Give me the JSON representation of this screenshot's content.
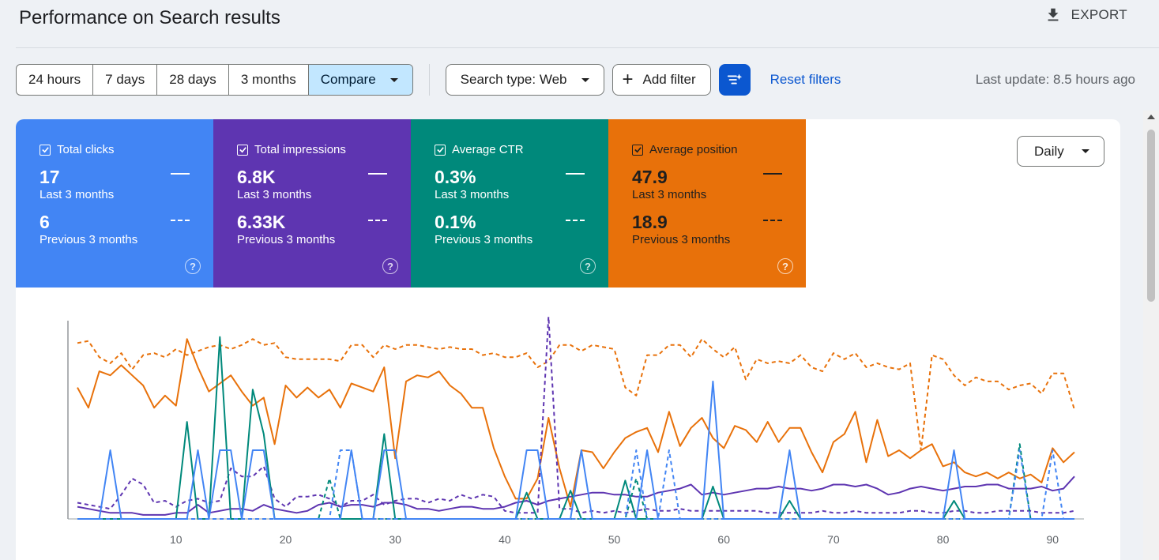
{
  "header": {
    "title": "Performance on Search results",
    "export_label": "EXPORT"
  },
  "toolbar": {
    "ranges": [
      "24 hours",
      "7 days",
      "28 days",
      "3 months"
    ],
    "compare_label": "Compare",
    "search_type_label": "Search type: Web",
    "add_filter_label": "Add filter",
    "reset_filters_label": "Reset filters",
    "last_update": "Last update: 8.5 hours ago"
  },
  "metrics": [
    {
      "label": "Total clicks",
      "current": "17",
      "current_period": "Last 3 months",
      "previous": "6",
      "previous_period": "Previous 3 months",
      "color": "#4285f4"
    },
    {
      "label": "Total impressions",
      "current": "6.8K",
      "current_period": "Last 3 months",
      "previous": "6.33K",
      "previous_period": "Previous 3 months",
      "color": "#5e35b1"
    },
    {
      "label": "Average CTR",
      "current": "0.3%",
      "current_period": "Last 3 months",
      "previous": "0.1%",
      "previous_period": "Previous 3 months",
      "color": "#00897b"
    },
    {
      "label": "Average position",
      "current": "47.9",
      "current_period": "Last 3 months",
      "previous": "18.9",
      "previous_period": "Previous 3 months",
      "color": "#e8710a"
    }
  ],
  "granularity": {
    "selected": "Daily"
  },
  "chart_data": {
    "type": "line",
    "x_ticks": [
      10,
      20,
      30,
      40,
      50,
      60,
      70,
      80,
      90
    ],
    "xlim": [
      1,
      92
    ],
    "grid": false,
    "colors": {
      "clicks": "#4285f4",
      "impressions": "#5e35b1",
      "ctr": "#00897b",
      "position": "#e8710a"
    },
    "series": [
      {
        "name": "Average position",
        "style": "solid",
        "color": "#e8710a",
        "normalized": true,
        "values": [
          0.65,
          0.55,
          0.73,
          0.71,
          0.76,
          0.71,
          0.66,
          0.55,
          0.61,
          0.56,
          0.89,
          0.75,
          0.63,
          0.67,
          0.71,
          0.63,
          0.56,
          0.6,
          0.37,
          0.66,
          0.6,
          0.65,
          0.6,
          0.64,
          0.55,
          0.67,
          0.65,
          0.63,
          0.75,
          0.3,
          0.68,
          0.71,
          0.7,
          0.73,
          0.66,
          0.62,
          0.55,
          0.55,
          0.35,
          0.21,
          0.1,
          0.1,
          0.2,
          0.5,
          0.25,
          0.06,
          0.34,
          0.33,
          0.25,
          0.33,
          0.4,
          0.43,
          0.45,
          0.33,
          0.53,
          0.36,
          0.45,
          0.5,
          0.4,
          0.35,
          0.46,
          0.44,
          0.38,
          0.48,
          0.38,
          0.45,
          0.45,
          0.33,
          0.23,
          0.38,
          0.42,
          0.53,
          0.28,
          0.49,
          0.31,
          0.34,
          0.3,
          0.34,
          0.37,
          0.26,
          0.28,
          0.23,
          0.21,
          0.23,
          0.2,
          0.23,
          0.2,
          0.22,
          0.18,
          0.35,
          0.28,
          0.33
        ]
      },
      {
        "name": "Average position (previous)",
        "style": "dashed",
        "color": "#e8710a",
        "normalized": true,
        "values": [
          0.87,
          0.88,
          0.8,
          0.77,
          0.82,
          0.74,
          0.81,
          0.82,
          0.8,
          0.84,
          0.81,
          0.83,
          0.85,
          0.86,
          0.84,
          0.86,
          0.89,
          0.86,
          0.87,
          0.8,
          0.79,
          0.79,
          0.79,
          0.79,
          0.78,
          0.86,
          0.86,
          0.8,
          0.86,
          0.84,
          0.86,
          0.86,
          0.85,
          0.84,
          0.85,
          0.84,
          0.84,
          0.81,
          0.82,
          0.8,
          0.8,
          0.82,
          0.75,
          0.78,
          0.86,
          0.86,
          0.83,
          0.86,
          0.85,
          0.84,
          0.65,
          0.61,
          0.81,
          0.81,
          0.86,
          0.86,
          0.8,
          0.89,
          0.84,
          0.8,
          0.85,
          0.69,
          0.79,
          0.77,
          0.78,
          0.77,
          0.81,
          0.75,
          0.73,
          0.82,
          0.79,
          0.82,
          0.75,
          0.77,
          0.75,
          0.74,
          0.77,
          0.34,
          0.81,
          0.79,
          0.71,
          0.66,
          0.7,
          0.68,
          0.68,
          0.64,
          0.66,
          0.67,
          0.62,
          0.72,
          0.72,
          0.54
        ]
      },
      {
        "name": "Total impressions",
        "style": "solid",
        "color": "#5e35b1",
        "normalized": true,
        "values": [
          0.06,
          0.05,
          0.04,
          0.03,
          0.03,
          0.03,
          0.02,
          0.02,
          0.02,
          0.03,
          0.03,
          0.07,
          0.03,
          0.04,
          0.05,
          0.05,
          0.04,
          0.07,
          0.05,
          0.04,
          0.03,
          0.04,
          0.07,
          0.08,
          0.06,
          0.07,
          0.07,
          0.06,
          0.08,
          0.08,
          0.07,
          0.05,
          0.05,
          0.04,
          0.05,
          0.06,
          0.06,
          0.05,
          0.05,
          0.06,
          0.08,
          0.09,
          0.07,
          0.09,
          0.1,
          0.11,
          0.12,
          0.13,
          0.13,
          0.12,
          0.12,
          0.11,
          0.11,
          0.13,
          0.14,
          0.15,
          0.17,
          0.12,
          0.13,
          0.12,
          0.13,
          0.14,
          0.15,
          0.15,
          0.16,
          0.15,
          0.15,
          0.14,
          0.15,
          0.17,
          0.17,
          0.16,
          0.17,
          0.15,
          0.12,
          0.13,
          0.15,
          0.16,
          0.15,
          0.14,
          0.15,
          0.16,
          0.16,
          0.17,
          0.17,
          0.15,
          0.15,
          0.15,
          0.16,
          0.14,
          0.15,
          0.21
        ]
      },
      {
        "name": "Total impressions (previous)",
        "style": "dashed",
        "color": "#5e35b1",
        "normalized": true,
        "values": [
          0.08,
          0.07,
          0.06,
          0.05,
          0.12,
          0.2,
          0.17,
          0.08,
          0.09,
          0.06,
          0.09,
          0.1,
          0.08,
          0.09,
          0.25,
          0.21,
          0.21,
          0.26,
          0.1,
          0.06,
          0.11,
          0.11,
          0.12,
          0.1,
          0.06,
          0.09,
          0.09,
          0.12,
          0.07,
          0.09,
          0.1,
          0.1,
          0.08,
          0.1,
          0.09,
          0.12,
          0.1,
          0.12,
          0.11,
          0.04,
          0.03,
          0.03,
          0.03,
          1.0,
          0.05,
          0.05,
          0.03,
          0.04,
          0.03,
          0.04,
          0.03,
          0.04,
          0.05,
          0.04,
          0.04,
          0.05,
          0.04,
          0.04,
          0.04,
          0.04,
          0.04,
          0.04,
          0.04,
          0.03,
          0.03,
          0.03,
          0.03,
          0.03,
          0.04,
          0.03,
          0.03,
          0.04,
          0.03,
          0.03,
          0.03,
          0.03,
          0.04,
          0.04,
          0.03,
          0.03,
          0.04,
          0.04,
          0.03,
          0.03,
          0.04,
          0.04,
          0.04,
          0.04,
          0.03,
          0.03,
          0.03,
          0.04
        ]
      },
      {
        "name": "Average CTR",
        "style": "solid",
        "color": "#00897b",
        "normalized": true,
        "values": [
          0,
          0,
          0,
          0,
          0,
          0,
          0,
          0,
          0,
          0,
          0.48,
          0,
          0,
          0.9,
          0,
          0,
          0.64,
          0.42,
          0,
          0,
          0,
          0,
          0,
          0,
          0,
          0,
          0,
          0,
          0.42,
          0,
          0,
          0,
          0,
          0,
          0,
          0,
          0,
          0,
          0,
          0,
          0,
          0.13,
          0,
          0,
          0,
          0.14,
          0,
          0,
          0,
          0,
          0.19,
          0,
          0,
          0,
          0,
          0,
          0,
          0,
          0.16,
          0,
          0,
          0,
          0,
          0,
          0,
          0.09,
          0,
          0,
          0,
          0,
          0,
          0,
          0,
          0,
          0,
          0,
          0,
          0,
          0,
          0,
          0.09,
          0,
          0,
          0,
          0,
          0,
          0,
          0,
          0,
          0,
          0,
          0
        ]
      },
      {
        "name": "Average CTR (previous)",
        "style": "dashed",
        "color": "#00897b",
        "normalized": true,
        "values": [
          0,
          0,
          0,
          0,
          0,
          0,
          0,
          0,
          0,
          0,
          0,
          0,
          0,
          0,
          0,
          0,
          0,
          0,
          0,
          0,
          0,
          0,
          0,
          0.2,
          0,
          0,
          0,
          0,
          0,
          0,
          0,
          0,
          0,
          0,
          0,
          0,
          0,
          0,
          0,
          0,
          0,
          0,
          0,
          0,
          0,
          0,
          0,
          0,
          0,
          0,
          0,
          0.2,
          0,
          0,
          0,
          0,
          0,
          0,
          0,
          0,
          0,
          0,
          0,
          0,
          0,
          0,
          0,
          0,
          0,
          0,
          0,
          0,
          0,
          0,
          0,
          0,
          0,
          0,
          0,
          0,
          0,
          0,
          0,
          0,
          0,
          0,
          0.37,
          0,
          0,
          0,
          0,
          0
        ]
      },
      {
        "name": "Total clicks",
        "style": "solid",
        "color": "#4285f4",
        "normalized": true,
        "values": [
          0,
          0,
          0,
          0.34,
          0,
          0,
          0,
          0,
          0,
          0,
          0,
          0.34,
          0,
          0.34,
          0.34,
          0,
          0.34,
          0.34,
          0,
          0,
          0,
          0,
          0,
          0,
          0,
          0.34,
          0,
          0,
          0.34,
          0.34,
          0,
          0,
          0,
          0,
          0,
          0,
          0,
          0,
          0,
          0,
          0,
          0.34,
          0.34,
          0,
          0,
          0,
          0.34,
          0,
          0,
          0,
          0,
          0,
          0.34,
          0,
          0,
          0,
          0,
          0,
          0.68,
          0,
          0,
          0,
          0,
          0,
          0,
          0.34,
          0,
          0,
          0,
          0,
          0,
          0,
          0,
          0,
          0,
          0,
          0,
          0,
          0,
          0,
          0.34,
          0,
          0,
          0,
          0,
          0,
          0,
          0,
          0,
          0,
          0,
          0
        ]
      },
      {
        "name": "Total clicks (previous)",
        "style": "dashed",
        "color": "#4285f4",
        "normalized": true,
        "values": [
          0,
          0,
          0,
          0,
          0,
          0,
          0,
          0,
          0,
          0,
          0,
          0,
          0,
          0,
          0,
          0,
          0,
          0,
          0,
          0,
          0,
          0,
          0,
          0,
          0.34,
          0.34,
          0,
          0,
          0,
          0,
          0,
          0,
          0,
          0,
          0,
          0,
          0,
          0,
          0,
          0,
          0,
          0,
          0,
          0,
          0,
          0,
          0,
          0,
          0,
          0,
          0,
          0.34,
          0,
          0,
          0.34,
          0,
          0,
          0,
          0,
          0,
          0,
          0,
          0,
          0,
          0,
          0,
          0,
          0,
          0,
          0,
          0,
          0,
          0,
          0,
          0,
          0,
          0,
          0,
          0,
          0,
          0,
          0,
          0,
          0,
          0,
          0,
          0.34,
          0,
          0,
          0.34,
          0,
          0
        ]
      }
    ]
  }
}
